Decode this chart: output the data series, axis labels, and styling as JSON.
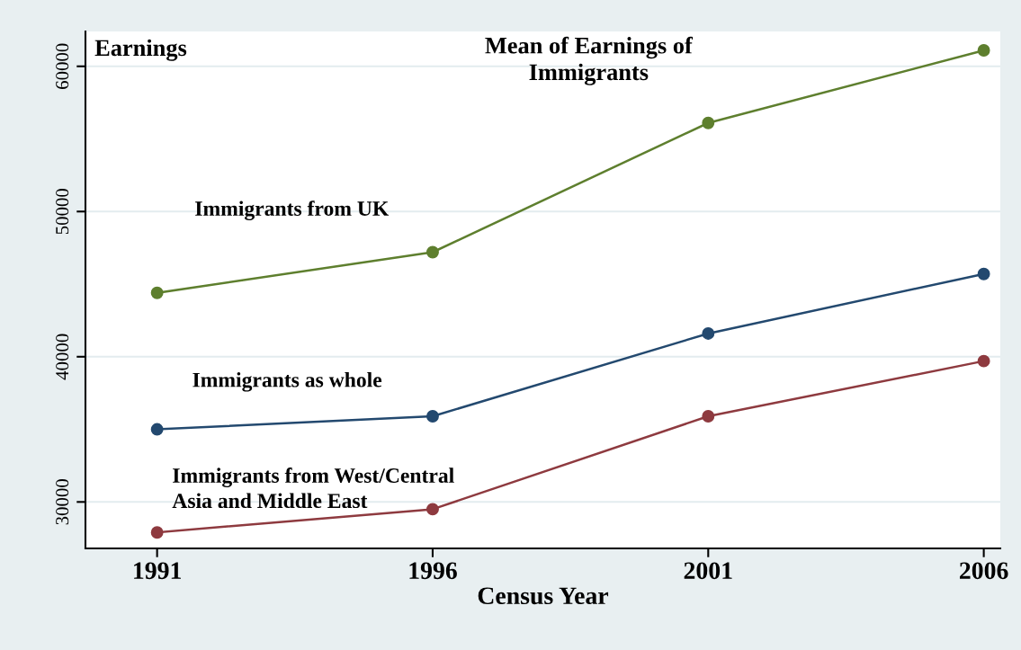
{
  "chart_data": {
    "type": "line",
    "title": "Mean of Earnings of\nImmigrants",
    "xlabel": "Census Year",
    "ylabel": "Earnings",
    "x": [
      1991,
      1996,
      2001,
      2006
    ],
    "series": [
      {
        "name": "Immigrants from UK",
        "color": "#5e7f2e",
        "values": [
          44400,
          47200,
          56100,
          61100
        ]
      },
      {
        "name": "Immigrants as whole",
        "color": "#23496f",
        "values": [
          35000,
          35900,
          41600,
          45700
        ]
      },
      {
        "name": "Immigrants from West/Central\nAsia and Middle East",
        "color": "#8e3a3f",
        "values": [
          27900,
          29500,
          35900,
          39700
        ]
      }
    ],
    "xlim": [
      1989.7,
      2006.3
    ],
    "xticks": [
      1991,
      1996,
      2001,
      2006
    ],
    "ylim": [
      26800,
      62400
    ],
    "yticks": [
      30000,
      40000,
      50000,
      60000
    ],
    "grid": "y",
    "marker": "circle",
    "line_style": "solid",
    "legend": false
  }
}
